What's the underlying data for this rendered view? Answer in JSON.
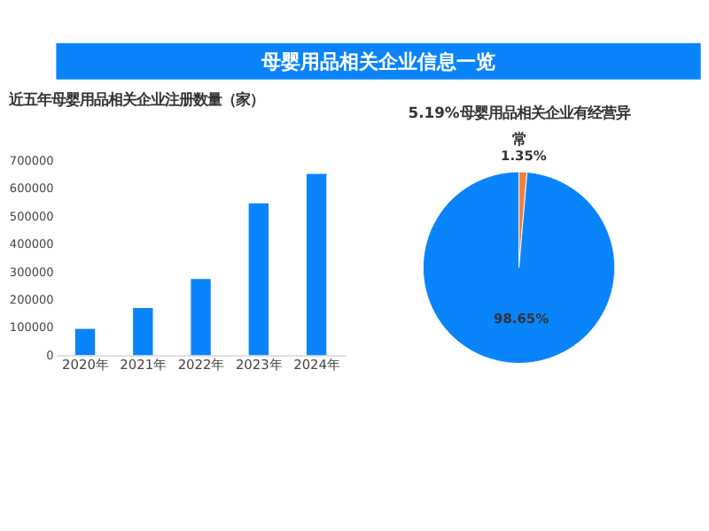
{
  "chart_data": [
    {
      "type": "bar",
      "title": "母婴用品相关企业信息一览",
      "subtitle": "近五年母婴用品相关企业注册数量（家）",
      "categories": [
        "2020年",
        "2021年",
        "2022年",
        "2023年",
        "2024年"
      ],
      "values": [
        94000,
        169000,
        273000,
        545000,
        651000
      ],
      "color": "#0a84fb",
      "ylim": [
        0,
        700000
      ],
      "yticks": [
        0,
        100000,
        200000,
        300000,
        400000,
        500000,
        600000,
        700000
      ],
      "grid": false
    },
    {
      "type": "pie",
      "title": "5.19%母婴用品相关企业有经营异常",
      "categories": [
        null,
        null
      ],
      "values": [
        1.35,
        98.65
      ],
      "colors": [
        "#f07f3c",
        "#0a84fb"
      ],
      "value_labels": [
        "1.35%",
        "98.65%"
      ],
      "legend": false
    }
  ]
}
